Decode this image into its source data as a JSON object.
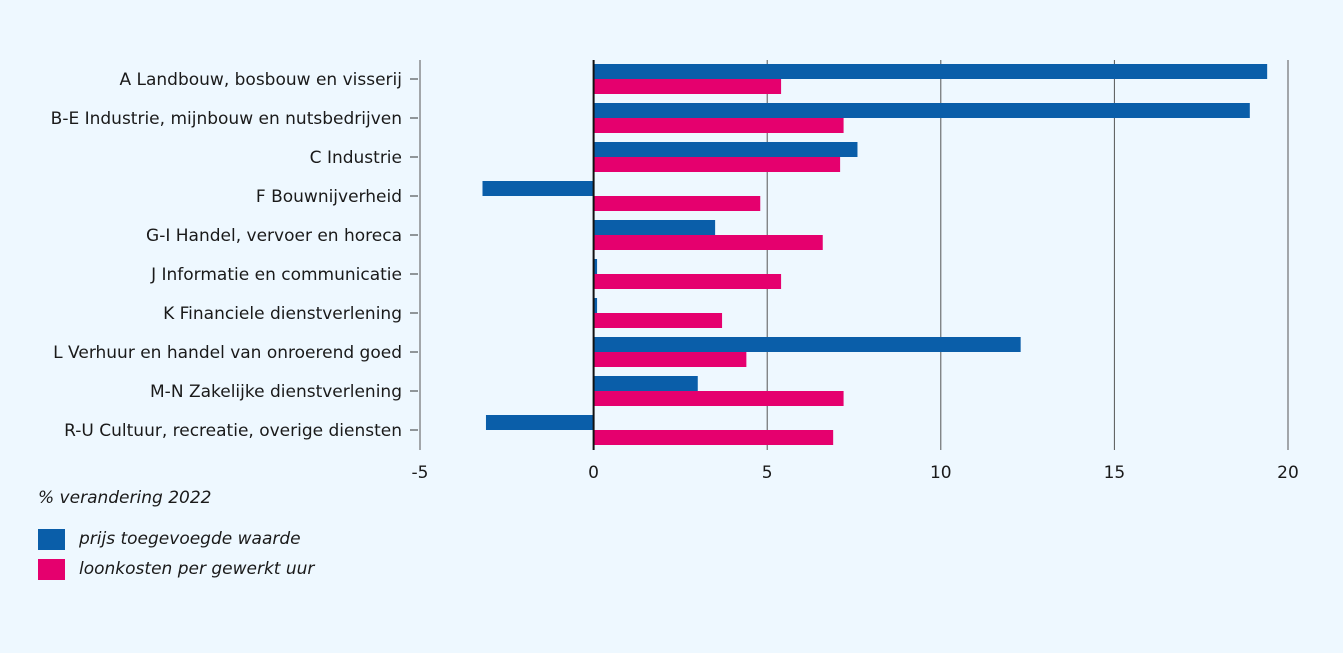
{
  "chart_data": {
    "type": "bar",
    "orientation": "horizontal",
    "categories": [
      "A Landbouw, bosbouw en visserij",
      "B-E Industrie, mijnbouw en nutsbedrijven",
      "C Industrie",
      "F Bouwnijverheid",
      "G-I Handel, vervoer en horeca",
      "J Informatie en communicatie",
      "K Financiele dienstverlening",
      "L Verhuur en handel van onroerend goed",
      "M-N Zakelijke dienstverlening",
      "R-U Cultuur, recreatie, overige diensten"
    ],
    "series": [
      {
        "name": "prijs toegevoegde waarde",
        "color": "#0a5ea9",
        "values": [
          19.4,
          18.9,
          7.6,
          -3.2,
          3.5,
          0.1,
          0.1,
          12.3,
          3.0,
          -3.1
        ]
      },
      {
        "name": "loonkosten per gewerkt uur",
        "color": "#e5006e",
        "values": [
          5.4,
          7.2,
          7.1,
          4.8,
          6.6,
          5.4,
          3.7,
          4.4,
          7.2,
          6.9
        ]
      }
    ],
    "xlim": [
      -5,
      20
    ],
    "xticks": [
      "-5",
      "0",
      "5",
      "10",
      "15",
      "20"
    ],
    "grid": true,
    "legend_title": "% verandering 2022",
    "legend_position": "bottom-left"
  }
}
